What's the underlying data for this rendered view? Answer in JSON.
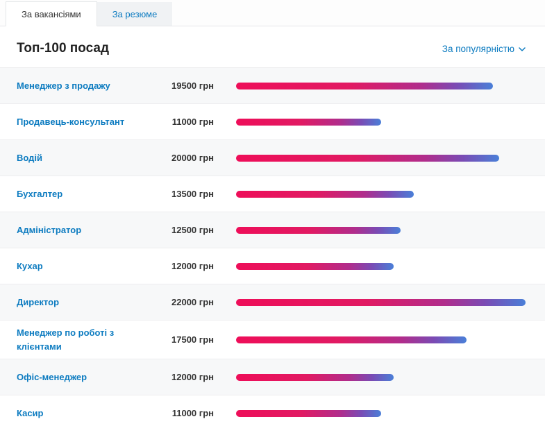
{
  "tabs": [
    {
      "label": "За вакансіями",
      "active": true
    },
    {
      "label": "За резюме",
      "active": false
    }
  ],
  "header": {
    "title": "Топ-100 посад",
    "sort_label": "За популярністю"
  },
  "rows": [
    {
      "title": "Менеджер з продажу",
      "salary_label": "19500 грн",
      "value": 19500
    },
    {
      "title": "Продавець-консультант",
      "salary_label": "11000 грн",
      "value": 11000
    },
    {
      "title": "Водій",
      "salary_label": "20000 грн",
      "value": 20000
    },
    {
      "title": "Бухгалтер",
      "salary_label": "13500 грн",
      "value": 13500
    },
    {
      "title": "Адміністратор",
      "salary_label": "12500 грн",
      "value": 12500
    },
    {
      "title": "Кухар",
      "salary_label": "12000 грн",
      "value": 12000
    },
    {
      "title": "Директор",
      "salary_label": "22000 грн",
      "value": 22000
    },
    {
      "title": "Менеджер по роботі з клієнтами",
      "salary_label": "17500 грн",
      "value": 17500
    },
    {
      "title": "Офіс-менеджер",
      "salary_label": "12000 грн",
      "value": 12000
    },
    {
      "title": "Касир",
      "salary_label": "11000 грн",
      "value": 11000
    }
  ],
  "colors": {
    "link_blue": "#0c7bc0",
    "bar_gradient_start": "#ee0e59",
    "bar_gradient_end": "#4a7fd8",
    "row_stripe": "#f7f8f9",
    "salary_text": "#333333"
  },
  "chart_data": {
    "type": "bar",
    "orientation": "horizontal",
    "title": "Топ-100 посад",
    "sort": "За популярністю",
    "categories": [
      "Менеджер з продажу",
      "Продавець-консультант",
      "Водій",
      "Бухгалтер",
      "Адміністратор",
      "Кухар",
      "Директор",
      "Менеджер по роботі з клієнтами",
      "Офіс-менеджер",
      "Касир"
    ],
    "values": [
      19500,
      11000,
      20000,
      13500,
      12500,
      12000,
      22000,
      17500,
      12000,
      11000
    ],
    "unit": "грн",
    "max_value": 22000,
    "xlim": [
      0,
      22000
    ],
    "grid": false,
    "legend": false
  }
}
